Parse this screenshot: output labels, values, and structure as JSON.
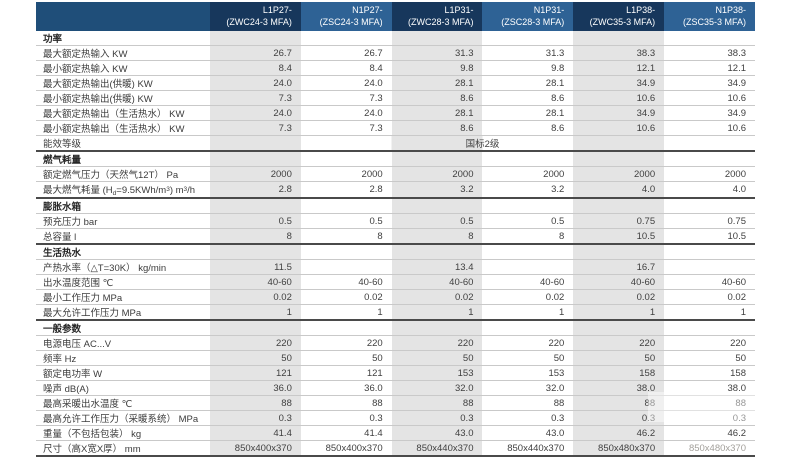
{
  "colors": {
    "header_dark": "#17375c",
    "header_light": "#2e6295",
    "header_label_bg": "#1f4e79",
    "stripe_gray": "#e4e4e4",
    "row_line": "#c9c9c9",
    "section_line": "#4a4a4a",
    "body_text": "#3f3f3f",
    "header_text": "#ffffff"
  },
  "table": {
    "columns": [
      {
        "model": "L1P27-",
        "code": "(ZWC24-3 MFA)"
      },
      {
        "model": "N1P27-",
        "code": "(ZSC24-3 MFA)"
      },
      {
        "model": "L1P31-",
        "code": "(ZWC28-3 MFA)"
      },
      {
        "model": "N1P31-",
        "code": "(ZSC28-3 MFA)"
      },
      {
        "model": "L1P38-",
        "code": "(ZWC35-3 MFA)"
      },
      {
        "model": "N1P38-",
        "code": "(ZSC35-3 MFA)"
      }
    ],
    "sections": [
      {
        "title": "功率",
        "rows": [
          {
            "label": "最大额定热输入 KW",
            "values": [
              "26.7",
              "26.7",
              "31.3",
              "31.3",
              "38.3",
              "38.3"
            ]
          },
          {
            "label": "最小额定热输入 KW",
            "values": [
              "8.4",
              "8.4",
              "9.8",
              "9.8",
              "12.1",
              "12.1"
            ]
          },
          {
            "label": "最大额定热输出(供暖) KW",
            "values": [
              "24.0",
              "24.0",
              "28.1",
              "28.1",
              "34.9",
              "34.9"
            ]
          },
          {
            "label": "最小额定热输出(供暖) KW",
            "values": [
              "7.3",
              "7.3",
              "8.6",
              "8.6",
              "10.6",
              "10.6"
            ]
          },
          {
            "label": "最大额定热输出（生活热水） KW",
            "values": [
              "24.0",
              "24.0",
              "28.1",
              "28.1",
              "34.9",
              "34.9"
            ]
          },
          {
            "label": "最小额定热输出（生活热水） KW",
            "values": [
              "7.3",
              "7.3",
              "8.6",
              "8.6",
              "10.6",
              "10.6"
            ]
          },
          {
            "label": "能效等级",
            "span_value": "国标2级"
          }
        ]
      },
      {
        "title": "燃气耗量",
        "rows": [
          {
            "label": "额定燃气压力（天然气12T） Pa",
            "values": [
              "2000",
              "2000",
              "2000",
              "2000",
              "2000",
              "2000"
            ]
          },
          {
            "label": "最大燃气耗量 (H_{d}=9.5KWh/m^{3}) m^{3}/h",
            "values": [
              "2.8",
              "2.8",
              "3.2",
              "3.2",
              "4.0",
              "4.0"
            ]
          }
        ]
      },
      {
        "title": "膨胀水箱",
        "rows": [
          {
            "label": "预充压力 bar",
            "values": [
              "0.5",
              "0.5",
              "0.5",
              "0.5",
              "0.75",
              "0.75"
            ]
          },
          {
            "label": "总容量 l",
            "values": [
              "8",
              "8",
              "8",
              "8",
              "10.5",
              "10.5"
            ]
          }
        ]
      },
      {
        "title": "生活热水",
        "rows": [
          {
            "label": "产热水率（△T=30K）  kg/min",
            "values": [
              "11.5",
              "",
              "13.4",
              "",
              "16.7",
              ""
            ]
          },
          {
            "label": "出水温度范围 ℃",
            "values": [
              "40-60",
              "40-60",
              "40-60",
              "40-60",
              "40-60",
              "40-60"
            ]
          },
          {
            "label": "最小工作压力 MPa",
            "values": [
              "0.02",
              "0.02",
              "0.02",
              "0.02",
              "0.02",
              "0.02"
            ]
          },
          {
            "label": "最大允许工作压力 MPa",
            "values": [
              "1",
              "1",
              "1",
              "1",
              "1",
              "1"
            ]
          }
        ]
      },
      {
        "title": "一般参数",
        "rows": [
          {
            "label": "电源电压 AC...V",
            "values": [
              "220",
              "220",
              "220",
              "220",
              "220",
              "220"
            ]
          },
          {
            "label": "频率 Hz",
            "values": [
              "50",
              "50",
              "50",
              "50",
              "50",
              "50"
            ]
          },
          {
            "label": "额定电功率 W",
            "values": [
              "121",
              "121",
              "153",
              "153",
              "158",
              "158"
            ]
          },
          {
            "label": "噪声 dB(A)",
            "values": [
              "36.0",
              "36.0",
              "32.0",
              "32.0",
              "38.0",
              "38.0"
            ]
          },
          {
            "label": "最高采暖出水温度 ℃",
            "values": [
              "88",
              "88",
              "88",
              "88",
              "88",
              "88"
            ]
          },
          {
            "label": "最高允许工作压力（采暖系统） MPa",
            "values": [
              "0.3",
              "0.3",
              "0.3",
              "0.3",
              "0.3",
              "0.3"
            ]
          },
          {
            "label": "重量（不包括包装） kg",
            "values": [
              "41.4",
              "41.4",
              "43.0",
              "43.0",
              "46.2",
              "46.2"
            ]
          },
          {
            "label": "尺寸（高X宽X厚） mm",
            "values": [
              "850x400x370",
              "850x400x370",
              "850x440x370",
              "850x440x370",
              "850x480x370",
              "850x480x370"
            ]
          }
        ]
      }
    ]
  }
}
